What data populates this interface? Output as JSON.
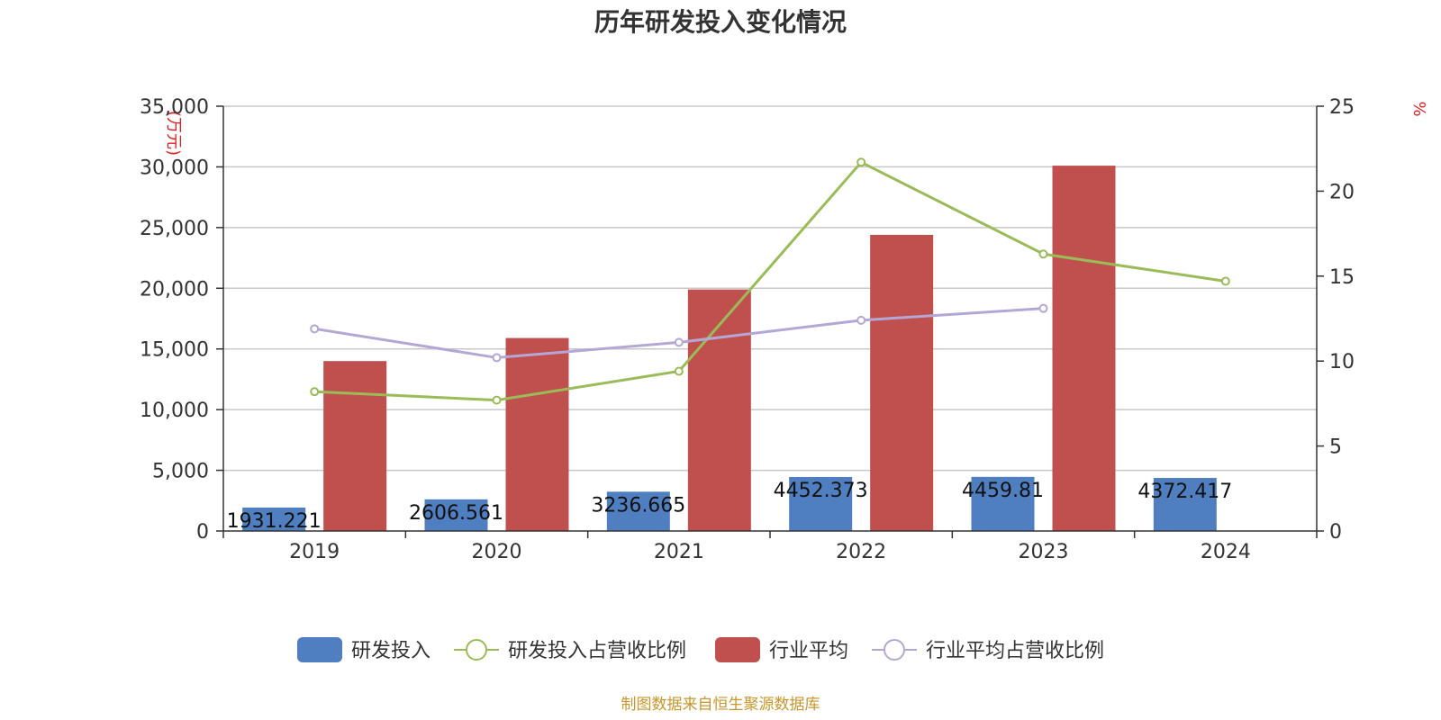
{
  "chart_data": {
    "type": "bar",
    "title": "历年研发投入变化情况",
    "categories": [
      "2019",
      "2020",
      "2021",
      "2022",
      "2023",
      "2024"
    ],
    "y_left": {
      "unit": "(万元)",
      "ylim": [
        0,
        35000
      ],
      "ticks": [
        "0",
        "5,000",
        "10,000",
        "15,000",
        "20,000",
        "25,000",
        "30,000",
        "35,000"
      ],
      "tick_values": [
        0,
        5000,
        10000,
        15000,
        20000,
        25000,
        30000,
        35000
      ]
    },
    "y_right": {
      "unit": "%",
      "ylim": [
        0,
        25
      ],
      "ticks": [
        "0",
        "5",
        "10",
        "15",
        "20",
        "25"
      ],
      "tick_values": [
        0,
        5,
        10,
        15,
        20,
        25
      ]
    },
    "grid": true,
    "legend_position": "bottom",
    "series": [
      {
        "name": "研发投入",
        "type": "bar",
        "axis": "left",
        "color": "#4f7fc0",
        "values": [
          1931.221,
          2606.561,
          3236.665,
          4452.373,
          4459.81,
          4372.417
        ],
        "labels": [
          "1931.221",
          "2606.561",
          "3236.665",
          "4452.373",
          "4459.81",
          "4372.417"
        ]
      },
      {
        "name": "研发投入占营收比例",
        "type": "line",
        "axis": "right",
        "color": "#9bbb59",
        "values": [
          8.2,
          7.7,
          9.4,
          21.7,
          16.3,
          14.7
        ]
      },
      {
        "name": "行业平均",
        "type": "bar",
        "axis": "left",
        "color": "#c0504d",
        "values": [
          14000,
          15900,
          19900,
          24400,
          30100,
          null
        ]
      },
      {
        "name": "行业平均占营收比例",
        "type": "line",
        "axis": "right",
        "color": "#b4a7d6",
        "values": [
          11.9,
          10.2,
          11.1,
          12.4,
          13.1,
          null
        ]
      }
    ],
    "source": "制图数据来自恒生聚源数据库"
  }
}
